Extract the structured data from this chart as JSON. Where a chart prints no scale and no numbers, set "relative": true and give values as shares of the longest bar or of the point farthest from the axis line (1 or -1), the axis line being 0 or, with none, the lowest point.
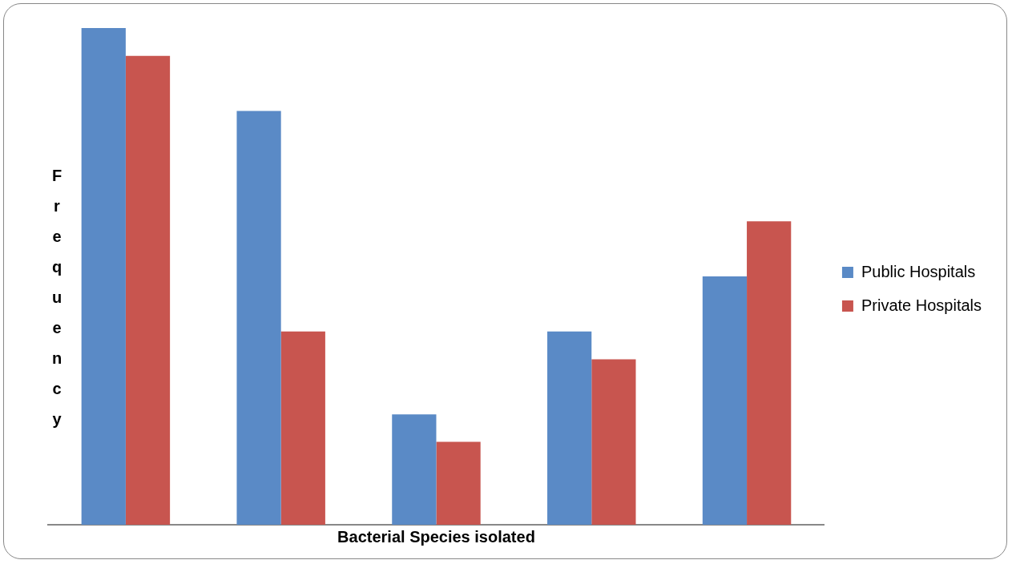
{
  "chart_data": {
    "type": "bar",
    "xlabel": "Bacterial Species isolated",
    "ylabel": "Frequency",
    "relative": true,
    "legend": "right",
    "categories": [
      null,
      null,
      null,
      null,
      null
    ],
    "series": [
      {
        "name": "Public Hospitals",
        "color": "#5a8ac6",
        "values": [
          1,
          0.833,
          0.222,
          0.389,
          0.5
        ]
      },
      {
        "name": "Private Hospitals",
        "color": "#c8554f",
        "values": [
          0.944,
          0.389,
          0.167,
          0.333,
          0.611
        ]
      }
    ]
  }
}
